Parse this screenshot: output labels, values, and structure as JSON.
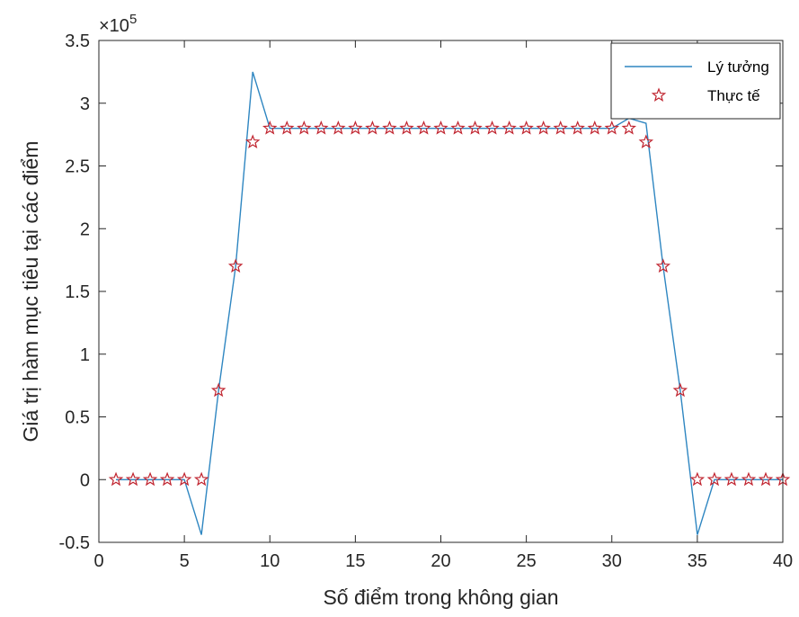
{
  "chart_data": {
    "type": "line",
    "xlabel": "Số điểm trong không gian",
    "ylabel": "Giá trị hàm mục tiêu tại các điểm",
    "exponent_label": {
      "base": "×10",
      "power": "5"
    },
    "xlim": [
      0,
      40
    ],
    "ylim": [
      -0.5,
      3.5
    ],
    "x_ticks": [
      0,
      5,
      10,
      15,
      20,
      25,
      30,
      35,
      40
    ],
    "x_tick_labels": [
      "0",
      "5",
      "10",
      "15",
      "20",
      "25",
      "30",
      "35",
      "40"
    ],
    "y_ticks": [
      -0.5,
      0,
      0.5,
      1,
      1.5,
      2,
      2.5,
      3,
      3.5
    ],
    "y_tick_labels": [
      "-0.5",
      "0",
      "0.5",
      "1",
      "1.5",
      "2",
      "2.5",
      "3",
      "3.5"
    ],
    "grid": false,
    "legend_position": "top-right",
    "colors": {
      "ideal": "#2e86c1",
      "actual": "#c0242f",
      "axes": "#262626"
    },
    "series": [
      {
        "name": "Lý tưởng",
        "style": "line",
        "x": [
          1,
          2,
          3,
          4,
          5,
          6,
          7,
          8,
          9,
          10,
          11,
          12,
          13,
          14,
          15,
          16,
          17,
          18,
          19,
          20,
          21,
          22,
          23,
          24,
          25,
          26,
          27,
          28,
          29,
          30,
          31,
          32,
          33,
          34,
          35,
          36,
          37,
          38,
          39,
          40
        ],
        "values": [
          0,
          0,
          0,
          0,
          0,
          -0.44,
          0.71,
          1.7,
          3.25,
          2.8,
          2.8,
          2.8,
          2.8,
          2.8,
          2.8,
          2.8,
          2.8,
          2.8,
          2.8,
          2.8,
          2.8,
          2.8,
          2.8,
          2.8,
          2.8,
          2.8,
          2.8,
          2.8,
          2.8,
          2.8,
          2.88,
          2.84,
          1.7,
          0.71,
          -0.44,
          0,
          0,
          0,
          0,
          0
        ]
      },
      {
        "name": "Thực tế",
        "style": "marker-star",
        "x": [
          1,
          2,
          3,
          4,
          5,
          6,
          7,
          8,
          9,
          10,
          11,
          12,
          13,
          14,
          15,
          16,
          17,
          18,
          19,
          20,
          21,
          22,
          23,
          24,
          25,
          26,
          27,
          28,
          29,
          30,
          31,
          32,
          33,
          34,
          35,
          36,
          37,
          38,
          39,
          40
        ],
        "values": [
          0,
          0,
          0,
          0,
          0,
          0,
          0.71,
          1.7,
          2.69,
          2.8,
          2.8,
          2.8,
          2.8,
          2.8,
          2.8,
          2.8,
          2.8,
          2.8,
          2.8,
          2.8,
          2.8,
          2.8,
          2.8,
          2.8,
          2.8,
          2.8,
          2.8,
          2.8,
          2.8,
          2.8,
          2.8,
          2.69,
          1.7,
          0.71,
          0,
          0,
          0,
          0,
          0,
          0
        ]
      }
    ]
  }
}
